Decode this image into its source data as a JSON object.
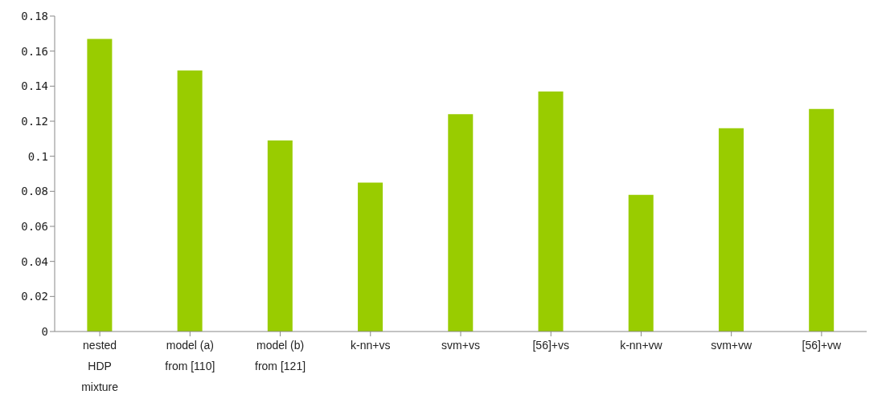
{
  "chart_data": {
    "type": "bar",
    "categories": [
      "nested\nHDP\nmixture",
      "model (a)\nfrom [110]",
      "model (b)\nfrom [121]",
      "k-nn+vs",
      "svm+vs",
      "[56]+vs",
      "k-nn+vw",
      "svm+vw",
      "[56]+vw"
    ],
    "values": [
      0.167,
      0.149,
      0.109,
      0.085,
      0.124,
      0.137,
      0.078,
      0.116,
      0.127
    ],
    "color": "#99cc00",
    "ylim": [
      0,
      0.18
    ],
    "yticks": [
      0,
      0.02,
      0.04,
      0.06,
      0.08,
      0.1,
      0.12,
      0.14,
      0.16,
      0.18
    ],
    "grid": false,
    "legend": false
  }
}
